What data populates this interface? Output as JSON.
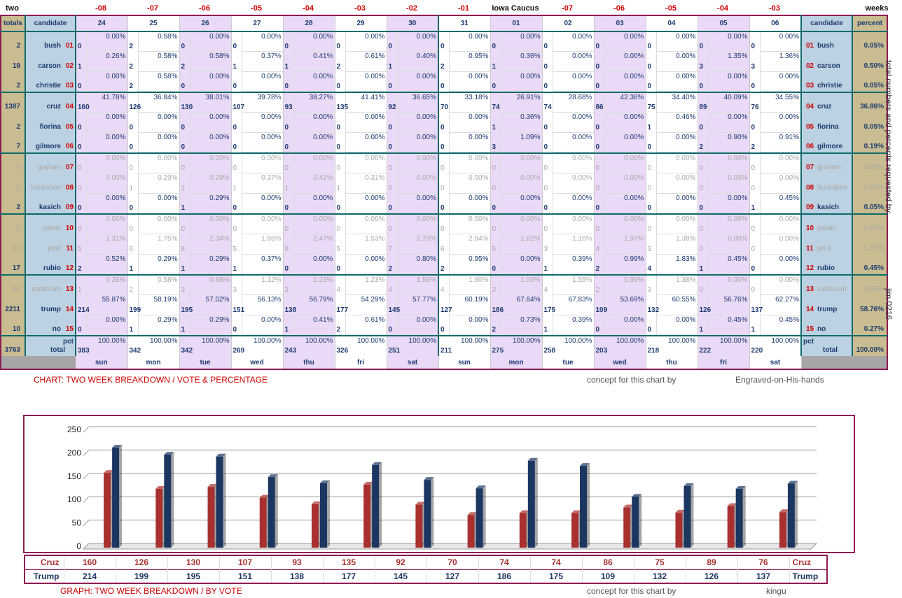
{
  "top_left_label": "two",
  "top_right_label": "weeks",
  "offsets": [
    "-08",
    "-07",
    "-06",
    "-05",
    "-04",
    "-03",
    "-02",
    "-01",
    "Iowa Caucus",
    "-07",
    "-06",
    "-05",
    "-04",
    "-03"
  ],
  "header": {
    "totals": "totals",
    "candidate": "candidate",
    "percent": "percent"
  },
  "dates": [
    "24",
    "25",
    "26",
    "27",
    "28",
    "29",
    "30",
    "31",
    "01",
    "02",
    "03",
    "04",
    "05",
    "06"
  ],
  "candidates": [
    {
      "num": "01",
      "name": "bush",
      "total": "2",
      "pct": "0.05%",
      "grey": false,
      "counts": [
        "0",
        "2",
        "0",
        "0",
        "0",
        "0",
        "0",
        "0",
        "0",
        "0",
        "0",
        "0",
        "0",
        "0"
      ],
      "pcts": [
        "0.00%",
        "0.58%",
        "0.00%",
        "0.00%",
        "0.00%",
        "0.00%",
        "0.00%",
        "0.00%",
        "0.00%",
        "0.00%",
        "0.00%",
        "0.00%",
        "0.00%",
        "0.00%"
      ]
    },
    {
      "num": "02",
      "name": "carson",
      "total": "19",
      "pct": "0.50%",
      "grey": false,
      "counts": [
        "1",
        "2",
        "2",
        "1",
        "1",
        "2",
        "1",
        "2",
        "1",
        "0",
        "0",
        "0",
        "3",
        "3"
      ],
      "pcts": [
        "0.26%",
        "0.58%",
        "0.58%",
        "0.37%",
        "0.41%",
        "0.61%",
        "0.40%",
        "0.95%",
        "0.36%",
        "0.00%",
        "0.00%",
        "0.00%",
        "1.35%",
        "1.36%"
      ]
    },
    {
      "num": "03",
      "name": "christie",
      "total": "2",
      "pct": "0.05%",
      "grey": false,
      "counts": [
        "0",
        "2",
        "0",
        "0",
        "0",
        "0",
        "0",
        "0",
        "0",
        "0",
        "0",
        "0",
        "0",
        "0"
      ],
      "pcts": [
        "0.00%",
        "0.58%",
        "0.00%",
        "0.00%",
        "0.00%",
        "0.00%",
        "0.00%",
        "0.00%",
        "0.00%",
        "0.00%",
        "0.00%",
        "0.00%",
        "0.00%",
        "0.00%"
      ]
    },
    {
      "num": "04",
      "name": "cruz",
      "total": "1387",
      "pct": "36.86%",
      "grey": false,
      "counts": [
        "160",
        "126",
        "130",
        "107",
        "93",
        "135",
        "92",
        "70",
        "74",
        "74",
        "86",
        "75",
        "89",
        "76"
      ],
      "pcts": [
        "41.78%",
        "36.84%",
        "38.01%",
        "39.78%",
        "38.27%",
        "41.41%",
        "36.65%",
        "33.18%",
        "26.91%",
        "28.68%",
        "42.36%",
        "34.40%",
        "40.09%",
        "34.55%"
      ]
    },
    {
      "num": "05",
      "name": "fiorina",
      "total": "2",
      "pct": "0.05%",
      "grey": false,
      "counts": [
        "0",
        "0",
        "0",
        "0",
        "0",
        "0",
        "0",
        "0",
        "1",
        "0",
        "0",
        "1",
        "0",
        "0"
      ],
      "pcts": [
        "0.00%",
        "0.00%",
        "0.00%",
        "0.00%",
        "0.00%",
        "0.00%",
        "0.00%",
        "0.00%",
        "0.36%",
        "0.00%",
        "0.00%",
        "0.46%",
        "0.00%",
        "0.00%"
      ]
    },
    {
      "num": "06",
      "name": "gilmore",
      "total": "7",
      "pct": "0.19%",
      "grey": false,
      "counts": [
        "0",
        "0",
        "0",
        "0",
        "0",
        "0",
        "0",
        "0",
        "3",
        "0",
        "0",
        "0",
        "2",
        "2"
      ],
      "pcts": [
        "0.00%",
        "0.00%",
        "0.00%",
        "0.00%",
        "0.00%",
        "0.00%",
        "0.00%",
        "0.00%",
        "1.09%",
        "0.00%",
        "0.00%",
        "0.00%",
        "0.90%",
        "0.91%"
      ]
    },
    {
      "num": "07",
      "name": "graham",
      "total": "0",
      "pct": "0.00%",
      "grey": true,
      "counts": [
        "0",
        "0",
        "0",
        "0",
        "0",
        "0",
        "0",
        "0",
        "0",
        "0",
        "0",
        "0",
        "0",
        "0"
      ],
      "pcts": [
        "0.00%",
        "0.00%",
        "0.00%",
        "0.00%",
        "0.00%",
        "0.00%",
        "0.00%",
        "0.00%",
        "0.00%",
        "0.00%",
        "0.00%",
        "0.00%",
        "0.00%",
        "0.00%"
      ]
    },
    {
      "num": "08",
      "name": "huckabee",
      "total": "5",
      "pct": "0.13%",
      "grey": true,
      "counts": [
        "0",
        "1",
        "1",
        "1",
        "1",
        "1",
        "0",
        "0",
        "0",
        "0",
        "0",
        "0",
        "0",
        "0"
      ],
      "pcts": [
        "0.00%",
        "0.29%",
        "0.29%",
        "0.37%",
        "0.41%",
        "0.31%",
        "0.00%",
        "0.00%",
        "0.00%",
        "0.00%",
        "0.00%",
        "0.00%",
        "0.00%",
        "0.00%"
      ]
    },
    {
      "num": "09",
      "name": "kasich",
      "total": "2",
      "pct": "0.05%",
      "grey": false,
      "counts": [
        "0",
        "0",
        "1",
        "0",
        "0",
        "0",
        "0",
        "0",
        "0",
        "0",
        "0",
        "0",
        "0",
        "1"
      ],
      "pcts": [
        "0.00%",
        "0.00%",
        "0.29%",
        "0.00%",
        "0.00%",
        "0.00%",
        "0.00%",
        "0.00%",
        "0.00%",
        "0.00%",
        "0.00%",
        "0.00%",
        "0.00%",
        "0.45%"
      ]
    },
    {
      "num": "10",
      "name": "pataki",
      "total": "0",
      "pct": "0.00%",
      "grey": true,
      "counts": [
        "0",
        "0",
        "0",
        "0",
        "0",
        "0",
        "0",
        "0",
        "0",
        "0",
        "0",
        "0",
        "0",
        "0"
      ],
      "pcts": [
        "0.00%",
        "0.00%",
        "0.00%",
        "0.00%",
        "0.00%",
        "0.00%",
        "0.00%",
        "0.00%",
        "0.00%",
        "0.00%",
        "0.00%",
        "0.00%",
        "0.00%",
        "0.00%"
      ]
    },
    {
      "num": "11",
      "name": "paul",
      "total": "63",
      "pct": "1.67%",
      "grey": true,
      "counts": [
        "5",
        "6",
        "8",
        "5",
        "6",
        "5",
        "7",
        "6",
        "5",
        "3",
        "4",
        "3",
        "0",
        "0"
      ],
      "pcts": [
        "1.31%",
        "1.75%",
        "2.34%",
        "1.86%",
        "2.47%",
        "1.53%",
        "2.79%",
        "2.84%",
        "1.82%",
        "1.16%",
        "1.97%",
        "1.38%",
        "0.00%",
        "0.00%"
      ]
    },
    {
      "num": "12",
      "name": "rubio",
      "total": "17",
      "pct": "0.45%",
      "grey": false,
      "counts": [
        "2",
        "1",
        "1",
        "1",
        "0",
        "0",
        "2",
        "2",
        "0",
        "1",
        "2",
        "4",
        "1",
        "0"
      ],
      "pcts": [
        "0.52%",
        "0.29%",
        "0.29%",
        "0.37%",
        "0.00%",
        "0.00%",
        "0.80%",
        "0.95%",
        "0.00%",
        "0.39%",
        "0.99%",
        "1.83%",
        "0.45%",
        "0.00%"
      ]
    },
    {
      "num": "13",
      "name": "santorum",
      "total": "36",
      "pct": "0.96%",
      "grey": true,
      "counts": [
        "1",
        "2",
        "3",
        "3",
        "3",
        "4",
        "4",
        "4",
        "3",
        "4",
        "2",
        "3",
        "0",
        "0"
      ],
      "pcts": [
        "0.26%",
        "0.58%",
        "0.88%",
        "1.12%",
        "1.23%",
        "1.23%",
        "1.59%",
        "1.90%",
        "1.09%",
        "1.55%",
        "0.99%",
        "1.38%",
        "0.00%",
        "0.00%"
      ]
    },
    {
      "num": "14",
      "name": "trump",
      "total": "2211",
      "pct": "58.76%",
      "grey": false,
      "counts": [
        "214",
        "199",
        "195",
        "151",
        "138",
        "177",
        "145",
        "127",
        "186",
        "175",
        "109",
        "132",
        "126",
        "137"
      ],
      "pcts": [
        "55.87%",
        "58.19%",
        "57.02%",
        "56.13%",
        "56.79%",
        "54.29%",
        "57.77%",
        "60.19%",
        "67.64%",
        "67.83%",
        "53.69%",
        "60.55%",
        "56.76%",
        "62.27%"
      ]
    },
    {
      "num": "15",
      "name": "no",
      "total": "10",
      "pct": "0.27%",
      "grey": false,
      "counts": [
        "0",
        "1",
        "1",
        "0",
        "1",
        "2",
        "0",
        "0",
        "2",
        "1",
        "0",
        "0",
        "1",
        "1"
      ],
      "pcts": [
        "0.00%",
        "0.29%",
        "0.29%",
        "0.00%",
        "0.41%",
        "0.61%",
        "0.00%",
        "0.00%",
        "0.73%",
        "0.39%",
        "0.00%",
        "0.00%",
        "0.45%",
        "0.45%"
      ]
    }
  ],
  "totals_row": {
    "total": "3763",
    "label": "total",
    "pct_label": "pct",
    "pct": "100.00%",
    "counts": [
      "383",
      "342",
      "342",
      "269",
      "243",
      "326",
      "251",
      "211",
      "275",
      "258",
      "203",
      "218",
      "222",
      "220"
    ],
    "pcts": [
      "100.00%",
      "100.00%",
      "100.00%",
      "100.00%",
      "100.00%",
      "100.00%",
      "100.00%",
      "100.00%",
      "100.00%",
      "100.00%",
      "100.00%",
      "100.00%",
      "100.00%",
      "100.00%"
    ]
  },
  "weekdays": [
    "sun",
    "mon",
    "tue",
    "wed",
    "thu",
    "fri",
    "sat",
    "sun",
    "mon",
    "tue",
    "wed",
    "thu",
    "fri",
    "sat"
  ],
  "side_text_1": "total numbers and percents requested by",
  "side_text_2": "jim 0216",
  "footer1": {
    "title": "CHART: TWO WEEK BREAKDOWN / VOTE & PERCENTAGE",
    "concept": "concept for this chart by",
    "author": "Engraved-on-His-hands"
  },
  "footer2": {
    "title": "GRAPH: TWO WEEK BREAKDOWN / BY VOTE",
    "concept": "concept for this chart by",
    "author": "kingu"
  },
  "chart_data": {
    "type": "bar",
    "categories": [
      "-08",
      "-07",
      "-06",
      "-05",
      "-04",
      "-03",
      "-02",
      "-01",
      "Iowa Caucus",
      "-07",
      "-06",
      "-05",
      "-04",
      "-03"
    ],
    "series": [
      {
        "name": "Cruz",
        "color": "#a8312f",
        "values": [
          160,
          126,
          130,
          107,
          93,
          135,
          92,
          70,
          74,
          74,
          86,
          75,
          89,
          76
        ]
      },
      {
        "name": "Trump",
        "color": "#1a3661",
        "values": [
          214,
          199,
          195,
          151,
          138,
          177,
          145,
          127,
          186,
          175,
          109,
          132,
          126,
          137
        ]
      }
    ],
    "yticks": [
      "0",
      "50",
      "100",
      "150",
      "200",
      "250"
    ],
    "ylim": [
      0,
      250
    ],
    "grid": true
  }
}
